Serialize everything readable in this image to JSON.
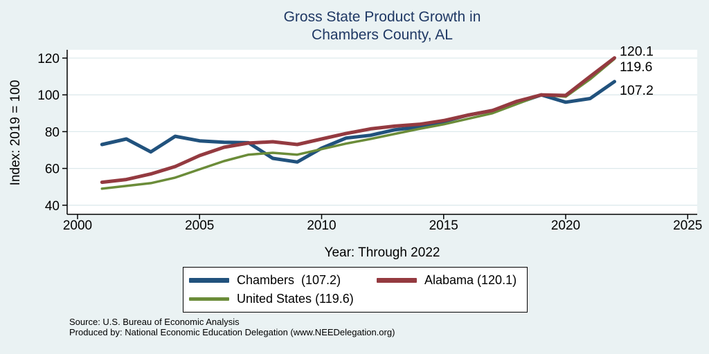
{
  "title": {
    "line1": "Gross State Product Growth in",
    "line2": "Chambers County, AL"
  },
  "y_axis": {
    "title": "Index: 2019 = 100",
    "ticks": [
      120,
      100,
      80,
      60,
      40
    ]
  },
  "x_axis": {
    "title": "Year: Through 2022",
    "ticks": [
      2000,
      2005,
      2010,
      2015,
      2020,
      2025
    ]
  },
  "source": {
    "line1": "Source: U.S. Bureau of Economic Analysis",
    "line2": "Produced by: National Economic Education Delegation (www.NEEDelegation.org)"
  },
  "colors": {
    "background": "#eaf2f3",
    "plot_background": "#ffffff",
    "gridline": "#dde9ec",
    "axis": "#000000",
    "title_text": "#1f3864",
    "chambers": "#21527d",
    "alabama": "#943a40",
    "united_states": "#6b8c39"
  },
  "chart_data": {
    "type": "line",
    "title": "Gross State Product Growth in Chambers County, AL",
    "xlabel": "Year: Through 2022",
    "ylabel": "Index: 2019 = 100",
    "xlim": [
      2000,
      2025
    ],
    "ylim": [
      40,
      125
    ],
    "grid": "horizontal",
    "legend_position": "bottom",
    "x": [
      2001,
      2002,
      2003,
      2004,
      2005,
      2006,
      2007,
      2008,
      2009,
      2010,
      2011,
      2012,
      2013,
      2014,
      2015,
      2016,
      2017,
      2018,
      2019,
      2020,
      2021,
      2022
    ],
    "series": [
      {
        "name": "Chambers",
        "legend_label": "Chambers  (107.2)",
        "end_label": "107.2",
        "color": "#21527d",
        "line_width": 5,
        "values": [
          73,
          76,
          69,
          77.5,
          75,
          74.2,
          74,
          65.5,
          63.5,
          71,
          76.5,
          78,
          81,
          82.5,
          85.5,
          89,
          91.5,
          95.5,
          100,
          96,
          98,
          107.2
        ]
      },
      {
        "name": "Alabama",
        "legend_label": "Alabama (120.1)",
        "end_label": "120.1",
        "color": "#943a40",
        "line_width": 5,
        "values": [
          52.5,
          54,
          57,
          61,
          67,
          71.5,
          73.8,
          74.5,
          73,
          76,
          79,
          81.5,
          83,
          84,
          86,
          89,
          91.5,
          96.5,
          100,
          99.7,
          110,
          120.1
        ]
      },
      {
        "name": "United States",
        "legend_label": "United States (119.6)",
        "end_label": "119.6",
        "color": "#6b8c39",
        "line_width": 3.5,
        "values": [
          49,
          50.5,
          52,
          55,
          59.5,
          64,
          67.5,
          68.5,
          67.5,
          70.5,
          73.5,
          76,
          78.8,
          81.5,
          84,
          87,
          90,
          95,
          100,
          99,
          108.5,
          119.6
        ]
      }
    ]
  }
}
